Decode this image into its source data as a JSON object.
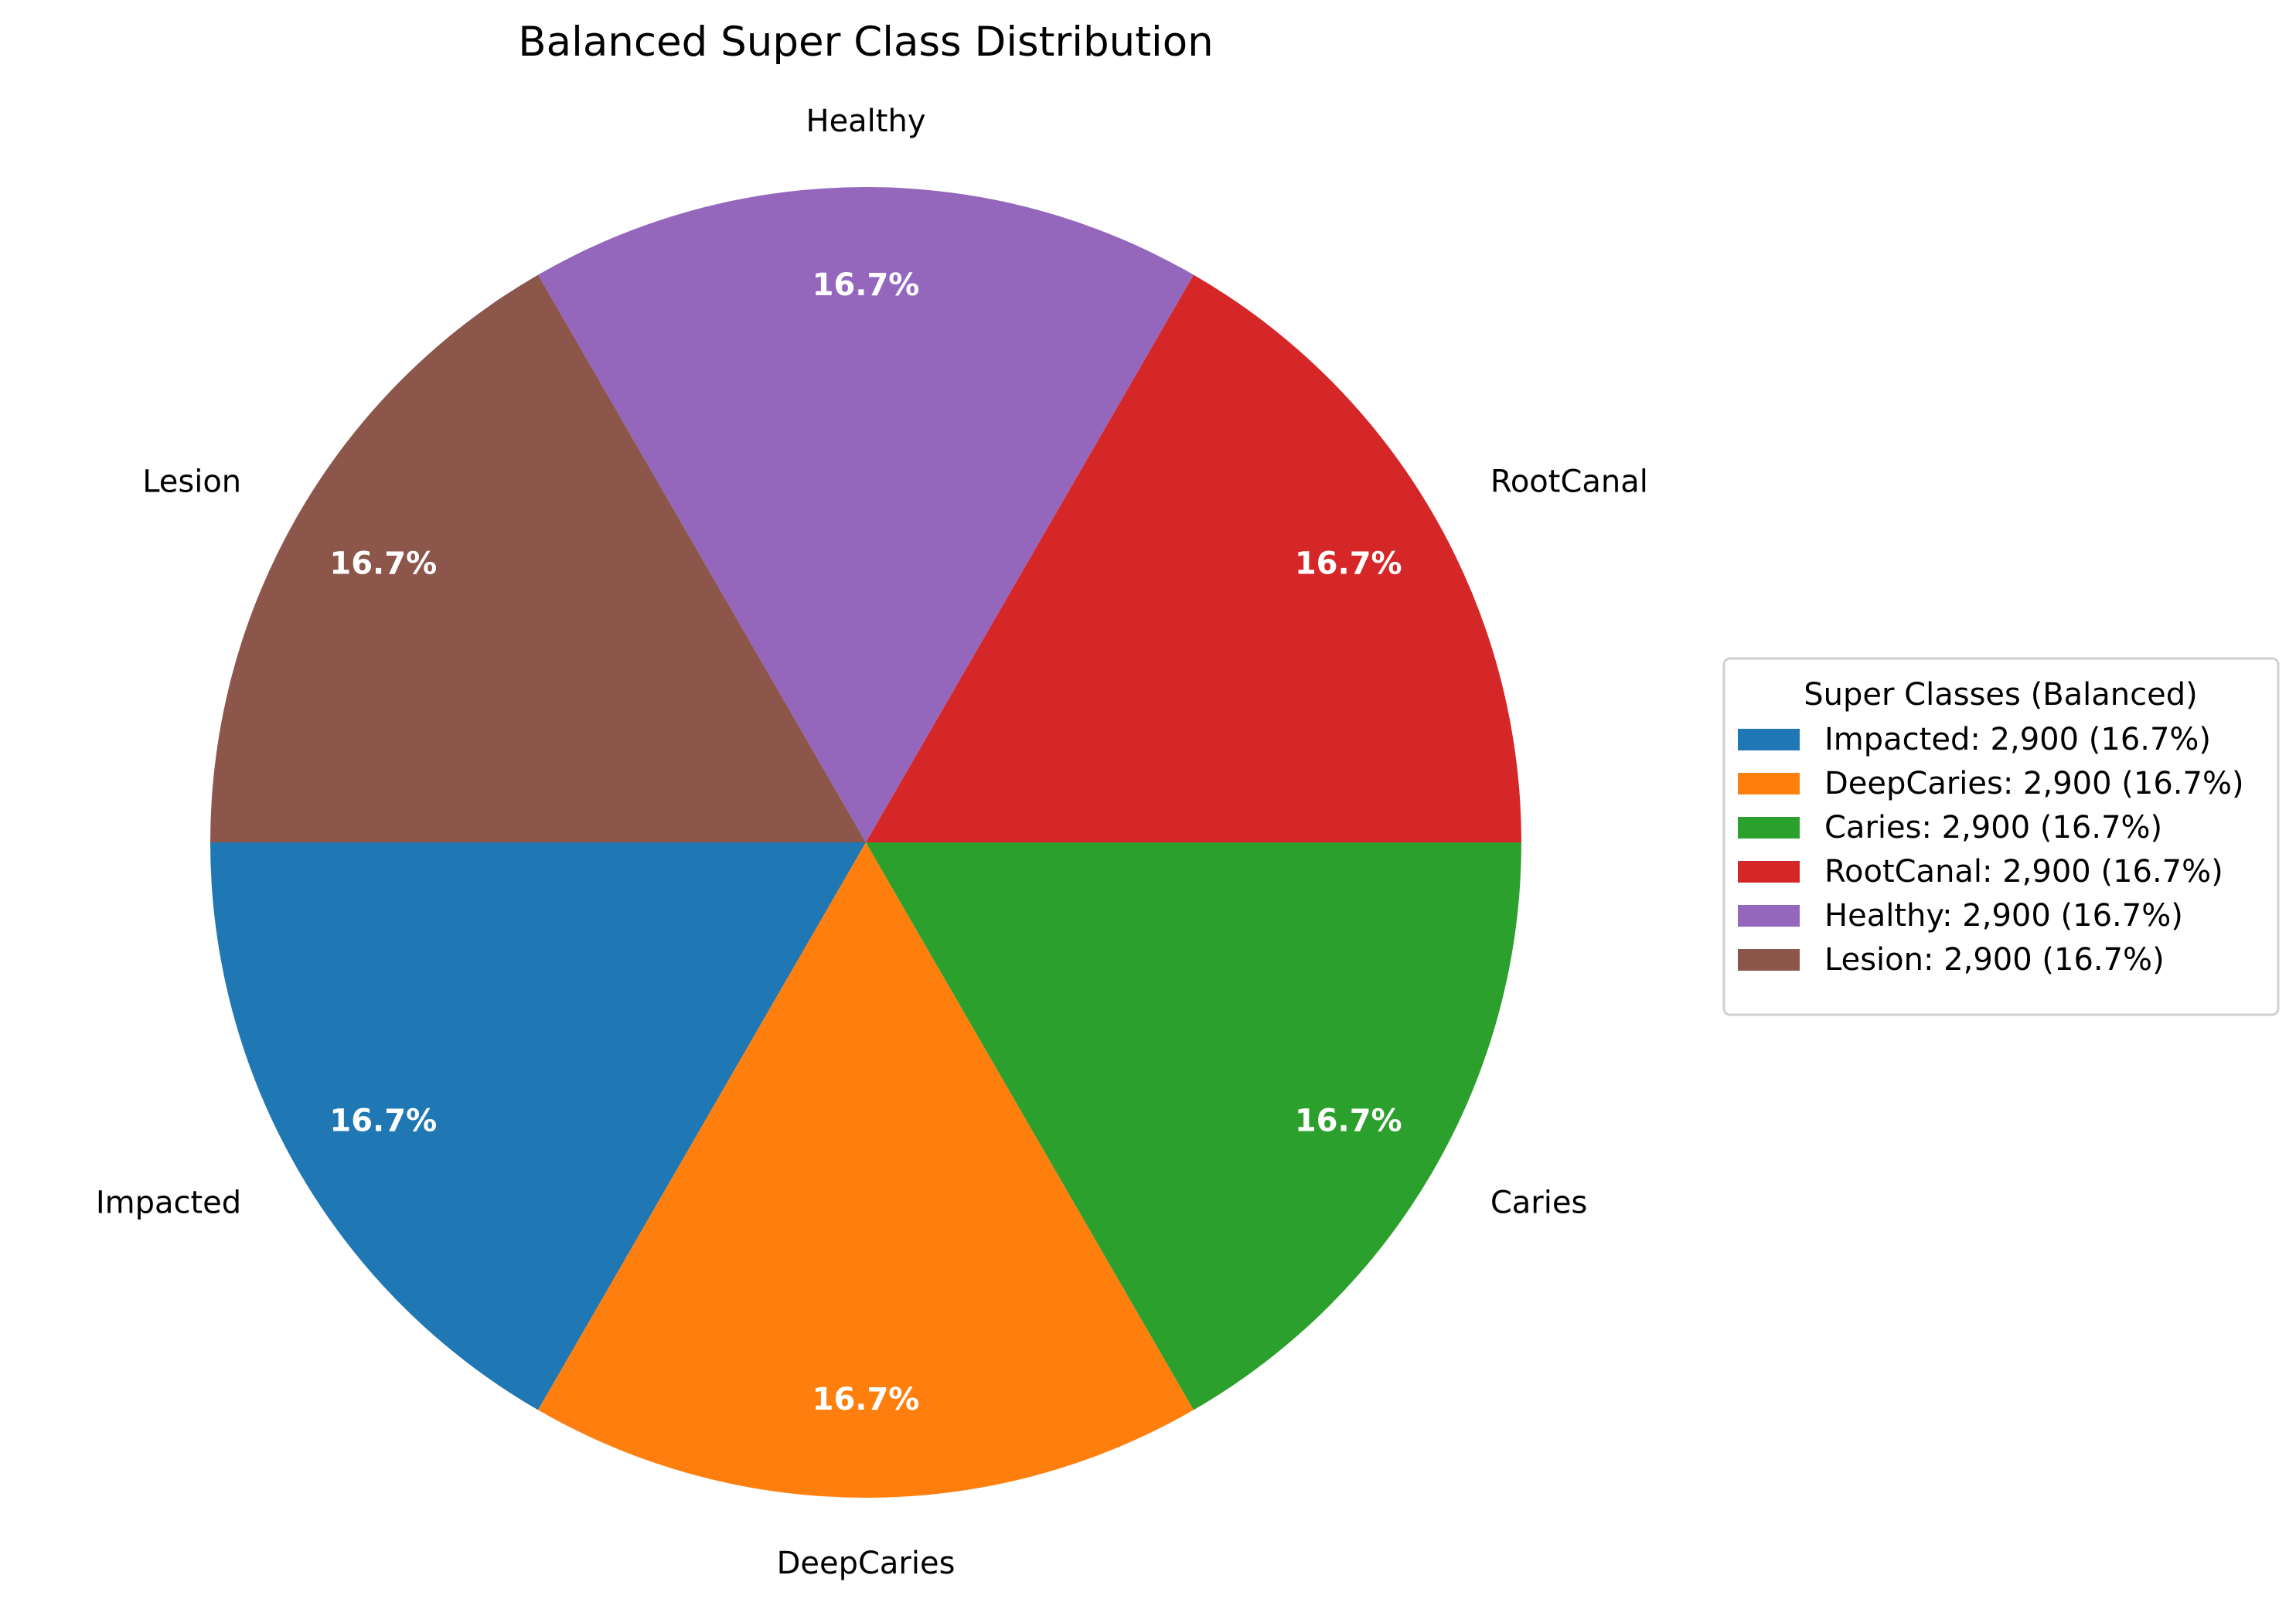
{
  "chart_data": {
    "type": "pie",
    "title": "Balanced Super Class Distribution",
    "categories": [
      "Impacted",
      "DeepCaries",
      "Caries",
      "RootCanal",
      "Healthy",
      "Lesion"
    ],
    "values": [
      2900,
      2900,
      2900,
      2900,
      2900,
      2900
    ],
    "percent_labels": [
      "16.7%",
      "16.7%",
      "16.7%",
      "16.7%",
      "16.7%",
      "16.7%"
    ],
    "colors": [
      "#1f77b4",
      "#ff7f0e",
      "#2ca02c",
      "#d62728",
      "#9467bd",
      "#8c564b"
    ],
    "start_angle_deg": 180,
    "direction": "counterclockwise",
    "legend": {
      "title": "Super Classes (Balanced)",
      "placement": "right",
      "entries": [
        "Impacted: 2,900 (16.7%)",
        "DeepCaries: 2,900 (16.7%)",
        "Caries: 2,900 (16.7%)",
        "RootCanal: 2,900 (16.7%)",
        "Healthy: 2,900 (16.7%)",
        "Lesion: 2,900 (16.7%)"
      ]
    }
  }
}
